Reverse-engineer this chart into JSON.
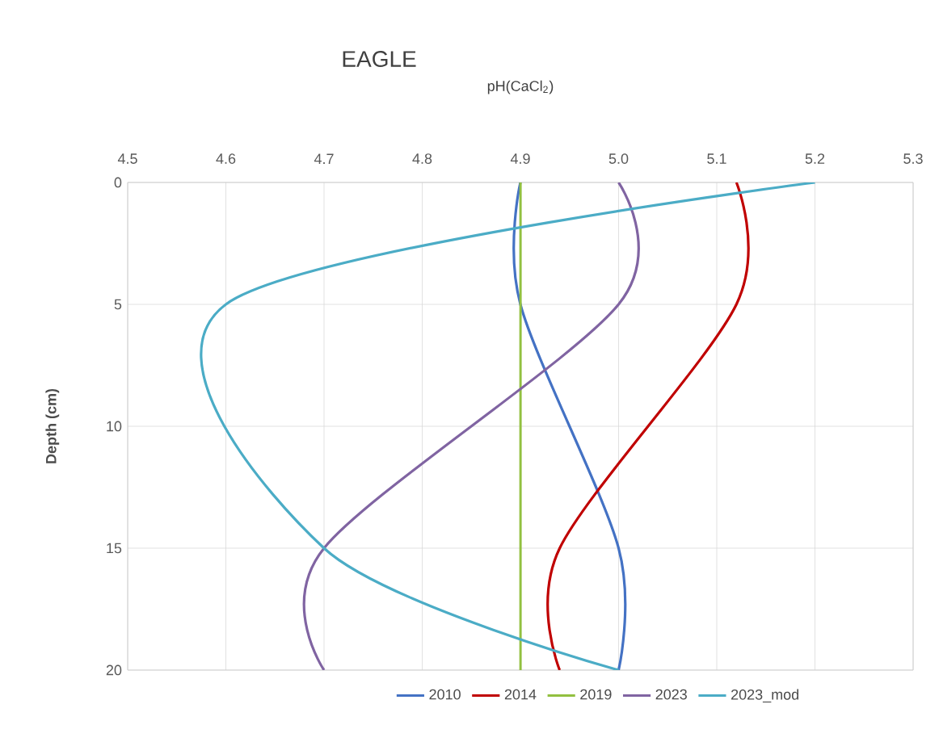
{
  "chart_data": {
    "type": "line",
    "title": "EAGLE",
    "xlabel": "pH(CaCl$_{2}$)",
    "ylabel": "Depth (cm)",
    "xlim": [
      4.5,
      5.3
    ],
    "xticks": [
      4.5,
      4.6,
      4.7,
      4.8,
      4.9,
      {
        "value": 5.0,
        "label": "5.0"
      },
      5.1,
      5.2,
      5.3
    ],
    "ylim": [
      20,
      0
    ],
    "yticks": [
      0,
      5,
      10,
      15,
      20
    ],
    "grid": true,
    "legend": "bottom",
    "series": [
      {
        "name": "2010",
        "color": "#4472c4",
        "x": [
          4.9,
          4.9,
          5.0,
          5.0
        ],
        "values": [
          0,
          5,
          15,
          20
        ]
      },
      {
        "name": "2014",
        "color": "#c00000",
        "x": [
          5.12,
          5.12,
          4.94,
          4.94
        ],
        "values": [
          0,
          5,
          15,
          20
        ]
      },
      {
        "name": "2019",
        "color": "#92c040",
        "x": [
          4.9,
          4.9,
          4.9,
          4.9
        ],
        "values": [
          0,
          5,
          15,
          20
        ]
      },
      {
        "name": "2023",
        "color": "#8064a2",
        "x": [
          5.0,
          5.0,
          4.7,
          4.7
        ],
        "values": [
          0,
          5,
          15,
          20
        ]
      },
      {
        "name": "2023_mod",
        "color": "#4bacc6",
        "x": [
          5.2,
          4.6,
          4.7,
          5.0
        ],
        "values": [
          0,
          5,
          15,
          20
        ]
      }
    ]
  }
}
